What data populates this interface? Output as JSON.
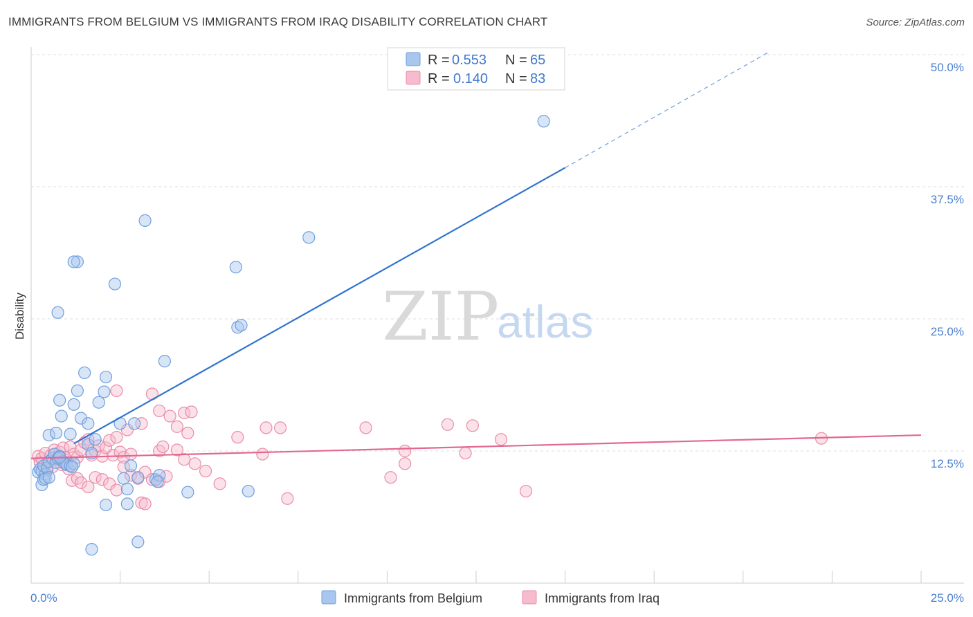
{
  "title": "IMMIGRANTS FROM BELGIUM VS IMMIGRANTS FROM IRAQ DISABILITY CORRELATION CHART",
  "source": "Source: ZipAtlas.com",
  "watermark": {
    "zip": "ZIP",
    "atlas": "atlas"
  },
  "legend": {
    "rows": [
      {
        "r_label": "R =",
        "r_value": "0.553",
        "n_label": "N =",
        "n_value": "65"
      },
      {
        "r_label": "R =",
        "r_value": "0.140",
        "n_label": "N =",
        "n_value": "83"
      }
    ]
  },
  "bottom_legend": [
    "Immigrants from Belgium",
    "Immigrants from Iraq"
  ],
  "colors": {
    "belgium_fill": "#a9c6ee",
    "belgium_stroke": "#6f9fdd",
    "belgium_line": "#2f74d0",
    "iraq_fill": "#f6bccd",
    "iraq_stroke": "#e98cab",
    "iraq_line": "#e2688f",
    "grid": "#dddddd",
    "tick_text": "#4a7fcf"
  },
  "chart_data": {
    "type": "scatter",
    "title": "IMMIGRANTS FROM BELGIUM VS IMMIGRANTS FROM IRAQ DISABILITY CORRELATION CHART",
    "xlabel": "",
    "ylabel": "Disability",
    "xlim": [
      0,
      25
    ],
    "ylim": [
      0,
      52
    ],
    "x_tick_labels": [
      "0.0%",
      "25.0%"
    ],
    "x_tick_values": [
      0,
      25
    ],
    "y_ticks": [
      12.5,
      25.0,
      37.5,
      50.0
    ],
    "y_tick_labels": [
      "12.5%",
      "25.0%",
      "37.5%",
      "50.0%"
    ],
    "series": [
      {
        "name": "Immigrants from Belgium",
        "R": 0.553,
        "N": 65,
        "trend": {
          "x0": 1.2,
          "y0": 13.2,
          "x1": 15.0,
          "y1": 39.3,
          "dash_x1": 20.7,
          "dash_y1": 50.2
        },
        "points": [
          [
            0.2,
            10.5
          ],
          [
            0.25,
            10.8
          ],
          [
            0.3,
            10.6
          ],
          [
            0.35,
            11.1
          ],
          [
            0.4,
            10.3
          ],
          [
            0.45,
            10.9
          ],
          [
            0.3,
            9.3
          ],
          [
            0.35,
            9.8
          ],
          [
            0.4,
            9.9
          ],
          [
            0.5,
            10.0
          ],
          [
            0.5,
            11.5
          ],
          [
            0.6,
            11.8
          ],
          [
            0.65,
            12.2
          ],
          [
            0.7,
            11.4
          ],
          [
            0.75,
            11.8
          ],
          [
            0.8,
            12.0
          ],
          [
            0.9,
            11.5
          ],
          [
            0.95,
            11.3
          ],
          [
            1.0,
            11.2
          ],
          [
            1.1,
            11.1
          ],
          [
            1.2,
            11.3
          ],
          [
            1.15,
            11.0
          ],
          [
            0.8,
            11.9
          ],
          [
            0.5,
            14.0
          ],
          [
            0.7,
            14.2
          ],
          [
            0.8,
            17.3
          ],
          [
            0.85,
            15.8
          ],
          [
            1.1,
            14.1
          ],
          [
            1.2,
            16.9
          ],
          [
            1.4,
            15.6
          ],
          [
            1.3,
            18.2
          ],
          [
            1.6,
            15.1
          ],
          [
            1.5,
            19.9
          ],
          [
            1.6,
            13.1
          ],
          [
            1.7,
            12.3
          ],
          [
            1.8,
            13.6
          ],
          [
            1.9,
            17.1
          ],
          [
            2.1,
            19.5
          ],
          [
            2.05,
            18.1
          ],
          [
            2.5,
            15.1
          ],
          [
            2.6,
            9.9
          ],
          [
            2.7,
            8.9
          ],
          [
            2.8,
            11.1
          ],
          [
            3.0,
            10.0
          ],
          [
            2.9,
            15.1
          ],
          [
            3.5,
            9.8
          ],
          [
            3.6,
            10.2
          ],
          [
            3.55,
            9.6
          ],
          [
            4.4,
            8.6
          ],
          [
            5.8,
            24.2
          ],
          [
            5.9,
            24.4
          ],
          [
            5.75,
            29.9
          ],
          [
            6.1,
            8.7
          ],
          [
            7.8,
            32.7
          ],
          [
            1.3,
            30.4
          ],
          [
            1.2,
            30.4
          ],
          [
            3.2,
            34.3
          ],
          [
            2.35,
            28.3
          ],
          [
            0.75,
            25.6
          ],
          [
            3.75,
            21.0
          ],
          [
            2.1,
            7.4
          ],
          [
            2.7,
            7.5
          ],
          [
            1.7,
            3.2
          ],
          [
            3.0,
            3.9
          ],
          [
            14.4,
            43.7
          ]
        ]
      },
      {
        "name": "Immigrants from Iraq",
        "R": 0.14,
        "N": 83,
        "trend": {
          "x0": 0.0,
          "y0": 11.8,
          "x1": 25.0,
          "y1": 14.0
        },
        "points": [
          [
            0.2,
            12.0
          ],
          [
            0.25,
            11.4
          ],
          [
            0.3,
            11.8
          ],
          [
            0.35,
            10.9
          ],
          [
            0.4,
            12.3
          ],
          [
            0.5,
            11.5
          ],
          [
            0.55,
            12.1
          ],
          [
            0.6,
            11.0
          ],
          [
            0.65,
            12.6
          ],
          [
            0.7,
            11.7
          ],
          [
            0.8,
            12.4
          ],
          [
            0.85,
            11.2
          ],
          [
            0.9,
            12.8
          ],
          [
            1.0,
            11.6
          ],
          [
            1.1,
            12.9
          ],
          [
            1.2,
            12.2
          ],
          [
            1.3,
            11.9
          ],
          [
            1.4,
            12.6
          ],
          [
            1.5,
            13.3
          ],
          [
            1.6,
            13.6
          ],
          [
            1.7,
            12.1
          ],
          [
            1.8,
            12.5
          ],
          [
            1.9,
            13.0
          ],
          [
            2.0,
            12.0
          ],
          [
            2.1,
            12.8
          ],
          [
            2.2,
            13.5
          ],
          [
            2.3,
            12.1
          ],
          [
            2.4,
            13.8
          ],
          [
            2.5,
            12.4
          ],
          [
            2.6,
            11.9
          ],
          [
            2.7,
            14.5
          ],
          [
            2.8,
            12.2
          ],
          [
            1.15,
            9.7
          ],
          [
            1.3,
            9.9
          ],
          [
            1.4,
            9.5
          ],
          [
            1.6,
            9.1
          ],
          [
            1.8,
            10.0
          ],
          [
            2.0,
            9.8
          ],
          [
            2.2,
            9.4
          ],
          [
            2.4,
            8.8
          ],
          [
            2.6,
            11.0
          ],
          [
            2.8,
            10.2
          ],
          [
            3.0,
            9.9
          ],
          [
            3.2,
            10.5
          ],
          [
            3.4,
            9.8
          ],
          [
            3.6,
            9.6
          ],
          [
            3.8,
            10.1
          ],
          [
            3.1,
            7.6
          ],
          [
            3.2,
            7.5
          ],
          [
            3.6,
            12.5
          ],
          [
            3.7,
            12.9
          ],
          [
            4.1,
            12.6
          ],
          [
            4.3,
            11.7
          ],
          [
            4.6,
            11.3
          ],
          [
            4.9,
            10.6
          ],
          [
            5.3,
            9.4
          ],
          [
            2.4,
            18.2
          ],
          [
            3.4,
            17.9
          ],
          [
            3.6,
            16.3
          ],
          [
            3.9,
            15.8
          ],
          [
            4.3,
            16.1
          ],
          [
            4.5,
            16.2
          ],
          [
            3.1,
            15.1
          ],
          [
            4.1,
            14.8
          ],
          [
            4.4,
            14.2
          ],
          [
            5.8,
            13.8
          ],
          [
            6.5,
            12.2
          ],
          [
            6.6,
            14.7
          ],
          [
            7.0,
            14.7
          ],
          [
            7.2,
            8.0
          ],
          [
            9.4,
            14.7
          ],
          [
            10.5,
            12.5
          ],
          [
            10.5,
            11.3
          ],
          [
            10.1,
            10.0
          ],
          [
            12.2,
            12.3
          ],
          [
            11.7,
            15.0
          ],
          [
            12.4,
            14.9
          ],
          [
            13.2,
            13.6
          ],
          [
            13.9,
            8.7
          ],
          [
            22.2,
            13.7
          ],
          [
            0.45,
            10.7
          ],
          [
            0.95,
            11.9
          ],
          [
            1.05,
            10.8
          ]
        ]
      }
    ]
  }
}
